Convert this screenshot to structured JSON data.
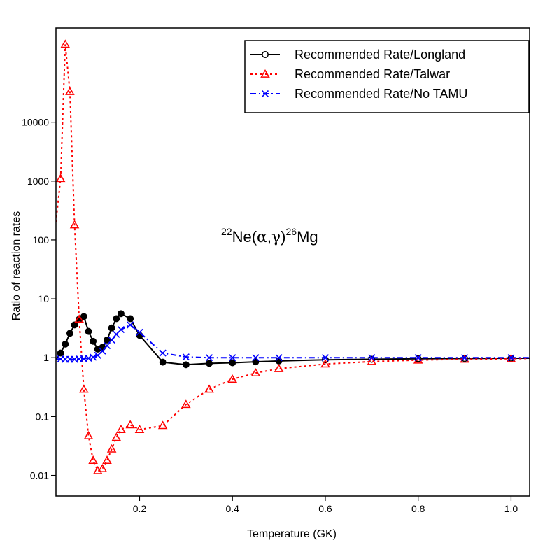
{
  "chart_data": {
    "type": "line",
    "title": "",
    "xlabel": "Temperature (GK)",
    "ylabel": "Ratio of reaction rates",
    "xlim": [
      0.02,
      1.04
    ],
    "ylim_log10": [
      -2.35,
      5.6
    ],
    "y_scale": "log",
    "x_ticks": [
      0.2,
      0.4,
      0.6,
      0.8,
      1.0
    ],
    "x_tick_labels": [
      "0.2",
      "0.4",
      "0.6",
      "0.8",
      "1.0"
    ],
    "y_ticks": [
      0.01,
      0.1,
      1,
      10,
      100,
      1000,
      10000
    ],
    "y_tick_labels": [
      "0.01",
      "0.1",
      "1",
      "10",
      "100",
      "1000",
      "10000"
    ],
    "legend_position": "top-right",
    "annotation": {
      "sup1": "22",
      "base1": "Ne(",
      "alpha": "α",
      "comma": ",",
      "gamma": "γ",
      "close": ")",
      "sup2": "26",
      "base2": "Mg"
    },
    "series": [
      {
        "name": "Recommended Rate/Longland",
        "color": "#000000",
        "line": "solid",
        "marker": "circle",
        "x": [
          0.02,
          0.03,
          0.04,
          0.05,
          0.06,
          0.07,
          0.08,
          0.09,
          0.1,
          0.11,
          0.12,
          0.13,
          0.14,
          0.15,
          0.16,
          0.18,
          0.2,
          0.25,
          0.3,
          0.35,
          0.4,
          0.45,
          0.5,
          0.6,
          0.7,
          0.8,
          0.9,
          1.0,
          1.04
        ],
        "y": [
          0.94,
          1.2,
          1.7,
          2.6,
          3.6,
          4.5,
          5.0,
          2.8,
          1.9,
          1.4,
          1.5,
          2.0,
          3.2,
          4.6,
          5.6,
          4.6,
          2.4,
          0.84,
          0.76,
          0.8,
          0.82,
          0.85,
          0.88,
          0.92,
          0.94,
          0.96,
          0.97,
          0.98,
          0.98
        ],
        "filled_markers_x": [
          0.03,
          0.04,
          0.05,
          0.06,
          0.07,
          0.08,
          0.09,
          0.1,
          0.11,
          0.12,
          0.13,
          0.14,
          0.15,
          0.16,
          0.18,
          0.2,
          0.25,
          0.3,
          0.35,
          0.4,
          0.45,
          0.5
        ]
      },
      {
        "name": "Recommended Rate/Talwar",
        "color": "#ff0000",
        "line": "dotted",
        "marker": "triangle",
        "x": [
          0.02,
          0.03,
          0.04,
          0.05,
          0.06,
          0.07,
          0.08,
          0.09,
          0.1,
          0.11,
          0.12,
          0.13,
          0.14,
          0.15,
          0.16,
          0.18,
          0.2,
          0.25,
          0.3,
          0.35,
          0.4,
          0.45,
          0.5,
          0.6,
          0.7,
          0.8,
          0.9,
          1.0,
          1.04
        ],
        "y": [
          200,
          1100,
          210000,
          33000,
          180,
          4.5,
          0.29,
          0.047,
          0.018,
          0.012,
          0.013,
          0.018,
          0.028,
          0.044,
          0.06,
          0.072,
          0.06,
          0.07,
          0.16,
          0.29,
          0.43,
          0.55,
          0.65,
          0.78,
          0.86,
          0.91,
          0.94,
          0.96,
          0.97
        ]
      },
      {
        "name": "Recommended Rate/No TAMU",
        "color": "#0000ff",
        "line": "dashdot",
        "marker": "x",
        "x": [
          0.02,
          0.03,
          0.04,
          0.05,
          0.06,
          0.07,
          0.08,
          0.09,
          0.1,
          0.11,
          0.12,
          0.13,
          0.14,
          0.15,
          0.16,
          0.18,
          0.2,
          0.25,
          0.3,
          0.35,
          0.4,
          0.45,
          0.5,
          0.6,
          0.7,
          0.8,
          0.9,
          1.0,
          1.04
        ],
        "y": [
          0.95,
          0.95,
          0.94,
          0.94,
          0.94,
          0.95,
          0.96,
          0.98,
          1.02,
          1.1,
          1.3,
          1.6,
          2.0,
          2.5,
          3.0,
          3.6,
          2.7,
          1.2,
          1.03,
          1.0,
          1.0,
          1.0,
          1.0,
          1.0,
          1.0,
          1.0,
          1.0,
          1.0,
          1.0
        ]
      }
    ]
  }
}
